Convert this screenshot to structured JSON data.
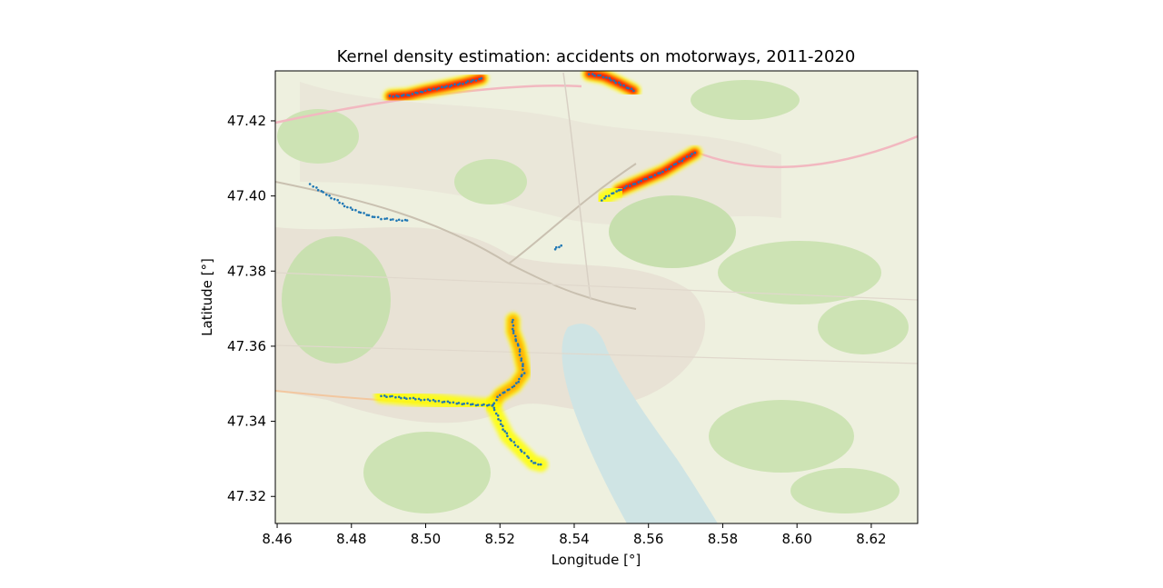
{
  "chart_data": {
    "type": "scatter",
    "title": "Kernel density estimation: accidents on motorways, 2011-2020",
    "xlabel": "Longitude [°]",
    "ylabel": "Latitude [°]",
    "xlim": [
      8.4595,
      8.6325
    ],
    "ylim": [
      47.3128,
      47.4333
    ],
    "xticks": [
      8.46,
      8.48,
      8.5,
      8.52,
      8.54,
      8.56,
      8.58,
      8.6,
      8.62
    ],
    "xtick_labels": [
      "8.46",
      "8.48",
      "8.50",
      "8.52",
      "8.54",
      "8.56",
      "8.58",
      "8.60",
      "8.62"
    ],
    "yticks": [
      47.32,
      47.34,
      47.36,
      47.38,
      47.4,
      47.42
    ],
    "ytick_labels": [
      "47.32",
      "47.34",
      "47.36",
      "47.38",
      "47.40",
      "47.42"
    ],
    "grid": false,
    "background": "street map basemap",
    "point_color": "#1f77b4",
    "density_colors": [
      "#ffff00",
      "#ffa500",
      "#ff0000"
    ],
    "segments": [
      {
        "points": [
          [
            8.4905,
            47.4265
          ],
          [
            8.495,
            47.4268
          ],
          [
            8.5,
            47.428
          ],
          [
            8.505,
            47.429
          ],
          [
            8.51,
            47.43
          ],
          [
            8.515,
            47.4313
          ]
        ],
        "density": 3
      },
      {
        "points": [
          [
            8.544,
            47.4325
          ],
          [
            8.548,
            47.4318
          ],
          [
            8.552,
            47.43
          ],
          [
            8.556,
            47.428
          ]
        ],
        "density": 3
      },
      {
        "points": [
          [
            8.552,
            47.4015
          ],
          [
            8.558,
            47.404
          ],
          [
            8.564,
            47.4065
          ],
          [
            8.569,
            47.4095
          ],
          [
            8.5725,
            47.4115
          ]
        ],
        "density": 3
      },
      {
        "points": [
          [
            8.5475,
            47.399
          ],
          [
            8.55,
            47.4005
          ],
          [
            8.552,
            47.4015
          ]
        ],
        "density": 1
      },
      {
        "points": [
          [
            8.5348,
            47.3858
          ],
          [
            8.5365,
            47.3868
          ]
        ],
        "density": 0
      },
      {
        "points": [
          [
            8.469,
            47.403
          ],
          [
            8.474,
            47.4
          ],
          [
            8.479,
            47.397
          ],
          [
            8.484,
            47.395
          ],
          [
            8.488,
            47.394
          ],
          [
            8.493,
            47.3935
          ],
          [
            8.495,
            47.3935
          ]
        ],
        "density": 0
      },
      {
        "points": [
          [
            8.488,
            47.3468
          ],
          [
            8.495,
            47.3462
          ],
          [
            8.502,
            47.3455
          ],
          [
            8.509,
            47.3448
          ],
          [
            8.515,
            47.3443
          ],
          [
            8.518,
            47.3443
          ]
        ],
        "density": 1
      },
      {
        "points": [
          [
            8.518,
            47.3443
          ],
          [
            8.52,
            47.347
          ],
          [
            8.524,
            47.3495
          ],
          [
            8.5265,
            47.353
          ],
          [
            8.525,
            47.36
          ],
          [
            8.5235,
            47.364
          ],
          [
            8.5235,
            47.367
          ]
        ],
        "density": 2
      },
      {
        "points": [
          [
            8.518,
            47.3443
          ],
          [
            8.52,
            47.34
          ],
          [
            8.522,
            47.336
          ],
          [
            8.526,
            47.332
          ],
          [
            8.529,
            47.329
          ],
          [
            8.531,
            47.3285
          ]
        ],
        "density": 1
      }
    ]
  }
}
